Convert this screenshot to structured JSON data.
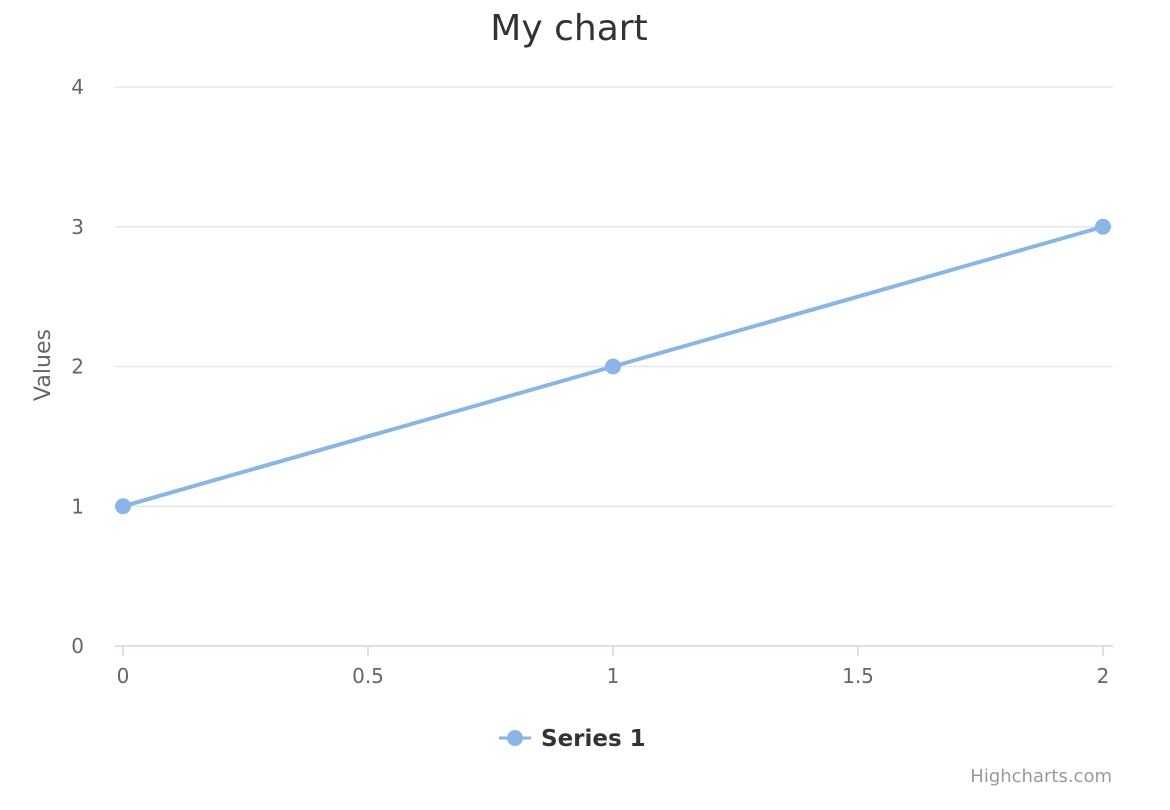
{
  "chart_data": {
    "type": "line",
    "title": "My chart",
    "xlabel": "",
    "ylabel": "Values",
    "x": [
      0,
      1,
      2
    ],
    "series": [
      {
        "name": "Series 1",
        "values": [
          1,
          2,
          3
        ]
      }
    ],
    "xlim": [
      0,
      2
    ],
    "ylim": [
      0,
      4
    ],
    "xticks": [
      "0",
      "0.5",
      "1",
      "1.5",
      "2"
    ],
    "yticks": [
      "0",
      "1",
      "2",
      "3",
      "4"
    ],
    "grid": true,
    "legend": "bottom-center",
    "credits": "Highcharts.com",
    "colors": {
      "series": "#8bb5e6",
      "grid": "#e6e6e6",
      "axis": "#ccd6eb",
      "text": "#333333",
      "label": "#666666",
      "credits": "#999999"
    }
  }
}
